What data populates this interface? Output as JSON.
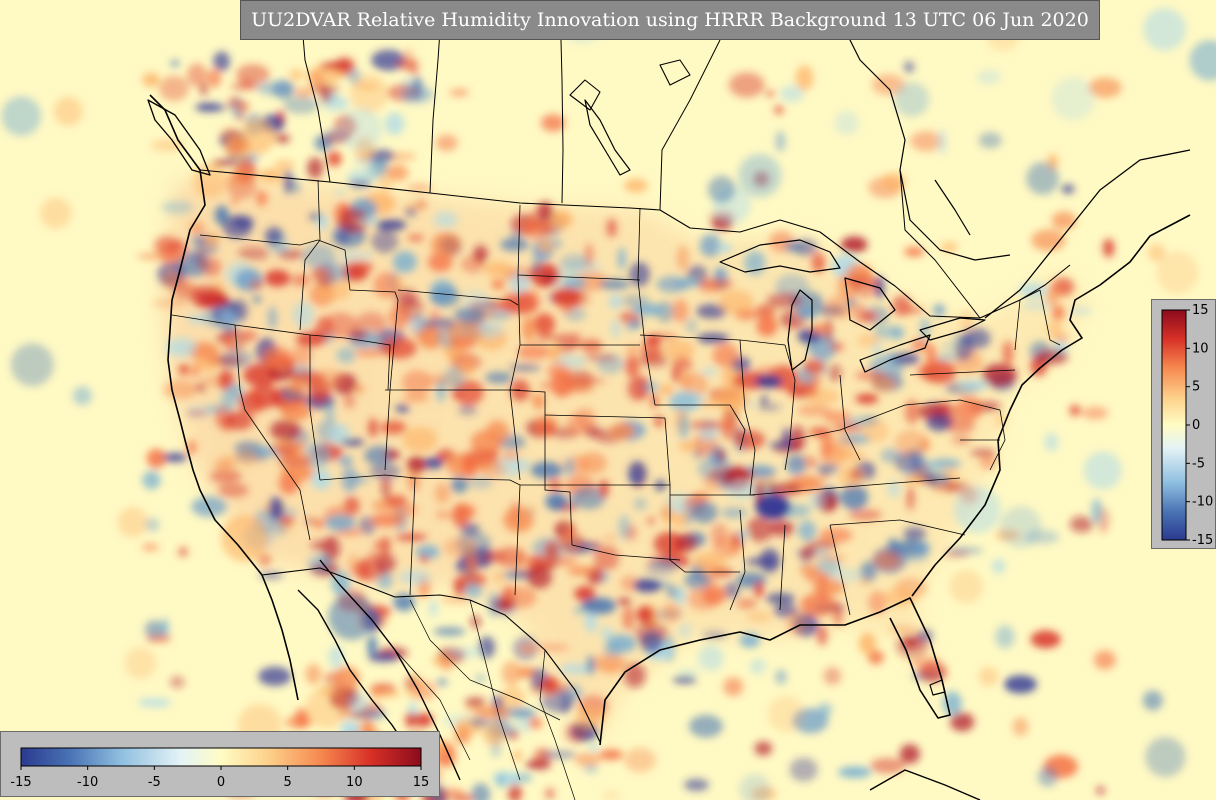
{
  "title": "UU2DVAR Relative Humidity Innovation using HRRR Background 13 UTC 06 Jun 2020",
  "colormap": {
    "name": "RdYlBu_r",
    "range": [
      -15,
      15
    ],
    "stops": [
      "#2b3a8f",
      "#4a74b5",
      "#8fbfe0",
      "#e4f3f6",
      "#fffcc4",
      "#fdd08a",
      "#f6884f",
      "#d73027",
      "#8b0b1c"
    ]
  },
  "colorbar_horizontal": {
    "ticks": [
      "-15",
      "-10",
      "-5",
      "0",
      "5",
      "10",
      "15"
    ]
  },
  "colorbar_vertical": {
    "ticks": [
      "15",
      "10",
      "5",
      "0",
      "-5",
      "-10",
      "-15"
    ]
  },
  "map": {
    "projection": "Lambert Conformal (HRRR CONUS domain)",
    "background_color": "#fff9c4",
    "boundaries": [
      "coastlines",
      "country borders",
      "US state borders",
      "Canadian provinces",
      "Mexican states"
    ]
  }
}
